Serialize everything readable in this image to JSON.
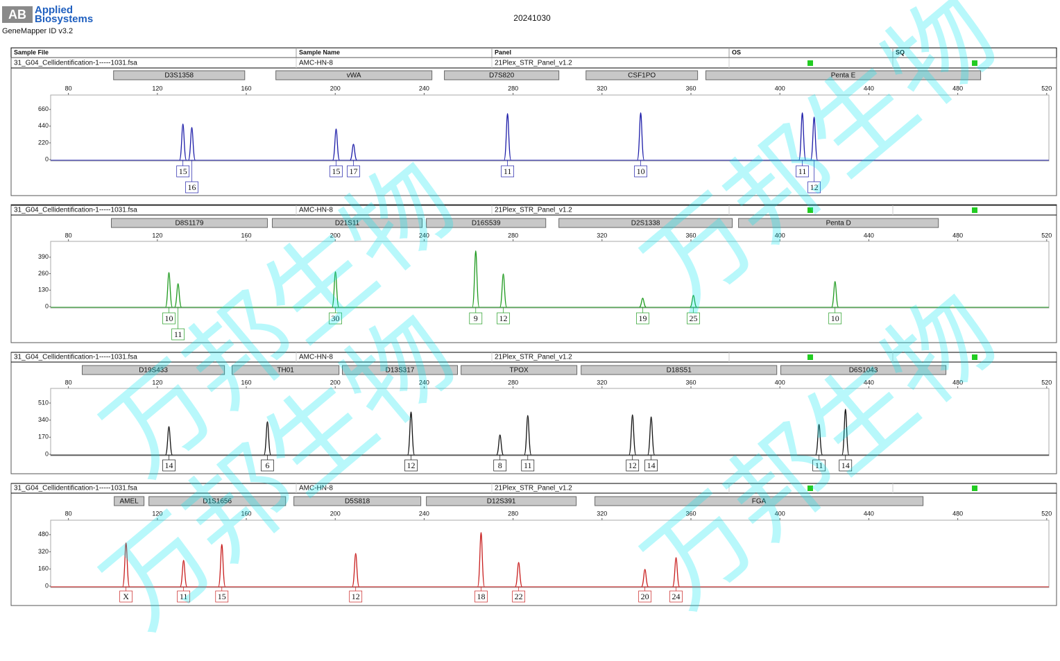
{
  "header": {
    "logo_mark": "AB",
    "logo_line1": "Applied",
    "logo_line2": "Biosystems",
    "software": "GeneMapper ID v3.2",
    "date": "20241030",
    "watermark": "万邦生物"
  },
  "table_header": {
    "sample_file": "Sample File",
    "sample_name": "Sample Name",
    "panel": "Panel",
    "os": "OS",
    "sq": "SQ"
  },
  "chart_data": [
    {
      "type": "electropherogram",
      "sample_file": "31_G04_Cellidentification-1-----1031.fsa",
      "sample_name": "AMC-HN-8",
      "panel": "21Plex_STR_Panel_v1.2",
      "color": "#1c1ca8",
      "xlim": [
        72,
        521
      ],
      "xticks": [
        80,
        120,
        160,
        200,
        240,
        280,
        320,
        360,
        400,
        440,
        480,
        520
      ],
      "ylim": [
        0,
        850
      ],
      "yticks": [
        0,
        220,
        440,
        660
      ],
      "markers": [
        {
          "name": "D3S1358",
          "start": 100.3,
          "end": 159.3
        },
        {
          "name": "vWA",
          "start": 173.3,
          "end": 243.5
        },
        {
          "name": "D7S820",
          "start": 249.1,
          "end": 300.6
        },
        {
          "name": "CSF1PO",
          "start": 312.8,
          "end": 363
        },
        {
          "name": "Penta E",
          "start": 366.7,
          "end": 490.3
        }
      ],
      "peaks": {
        "x": [
          131.5,
          135.5,
          200.4,
          208.2,
          277.5,
          337.4,
          410.1,
          415.4
        ],
        "values": [
          468,
          422,
          403,
          202,
          605,
          615,
          615,
          560
        ],
        "alleles": [
          "15",
          "16",
          "15",
          "17",
          "11",
          "10",
          "11",
          "12"
        ]
      }
    },
    {
      "type": "electropherogram",
      "sample_file": "31_G04_Cellidentification-1-----1031.fsa",
      "sample_name": "AMC-HN-8",
      "panel": "21Plex_STR_Panel_v1.2",
      "color": "#1f9a1f",
      "xlim": [
        72,
        521
      ],
      "xticks": [
        80,
        120,
        160,
        200,
        240,
        280,
        320,
        360,
        400,
        440,
        480,
        520
      ],
      "ylim": [
        0,
        515
      ],
      "yticks": [
        0,
        130,
        260,
        390
      ],
      "markers": [
        {
          "name": "D8S1179",
          "start": 99.3,
          "end": 169.5
        },
        {
          "name": "D21S11",
          "start": 171.7,
          "end": 239.1
        },
        {
          "name": "D16S539",
          "start": 241,
          "end": 294.7
        },
        {
          "name": "D2S1338",
          "start": 300.6,
          "end": 378.6
        },
        {
          "name": "Penta D",
          "start": 381.4,
          "end": 471.3
        }
      ],
      "peaks": {
        "x": [
          125.2,
          129.3,
          200.1,
          263.2,
          275.6,
          338.3,
          361.1,
          424.8
        ],
        "values": [
          269,
          181,
          275,
          440,
          258,
          66,
          88,
          198
        ],
        "alleles": [
          "10",
          "11",
          "30",
          "9",
          "12",
          "19",
          "25",
          "10"
        ]
      }
    },
    {
      "type": "electropherogram",
      "sample_file": "31_G04_Cellidentification-1-----1031.fsa",
      "sample_name": "AMC-HN-8",
      "panel": "21Plex_STR_Panel_v1.2",
      "color": "#111111",
      "xlim": [
        72,
        521
      ],
      "xticks": [
        80,
        120,
        160,
        200,
        240,
        280,
        320,
        360,
        400,
        440,
        480,
        520
      ],
      "ylim": [
        0,
        655
      ],
      "yticks": [
        0,
        170,
        340,
        510
      ],
      "markers": [
        {
          "name": "D19S433",
          "start": 86.2,
          "end": 150.2
        },
        {
          "name": "TH01",
          "start": 153.6,
          "end": 201.7
        },
        {
          "name": "D13S317",
          "start": 203.2,
          "end": 255
        },
        {
          "name": "TPOX",
          "start": 256.6,
          "end": 308.7
        },
        {
          "name": "D18S51",
          "start": 310.6,
          "end": 398.6
        },
        {
          "name": "D6S1043",
          "start": 400.4,
          "end": 474.7
        }
      ],
      "peaks": {
        "x": [
          125.2,
          169.5,
          234.1,
          274.1,
          286.6,
          333.7,
          342.1,
          417.6,
          429.5
        ],
        "values": [
          276,
          324,
          421,
          193,
          386,
          393,
          372,
          297,
          448
        ],
        "alleles": [
          "14",
          "6",
          "12",
          "8",
          "11",
          "12",
          "14",
          "11",
          "14"
        ]
      }
    },
    {
      "type": "electropherogram",
      "sample_file": "31_G04_Cellidentification-1-----1031.fsa",
      "sample_name": "AMC-HN-8",
      "panel": "21Plex_STR_Panel_v1.2",
      "color": "#c81e1e",
      "xlim": [
        72,
        521
      ],
      "xticks": [
        80,
        120,
        160,
        200,
        240,
        280,
        320,
        360,
        400,
        440,
        480,
        520
      ],
      "ylim": [
        0,
        615
      ],
      "yticks": [
        0,
        160,
        320,
        480
      ],
      "markers": [
        {
          "name": "AMEL",
          "start": 100.6,
          "end": 114
        },
        {
          "name": "D1S1656",
          "start": 116.2,
          "end": 177.7
        },
        {
          "name": "D5S818",
          "start": 181.4,
          "end": 238.5
        },
        {
          "name": "D12S391",
          "start": 241,
          "end": 308.4
        },
        {
          "name": "FGA",
          "start": 316.8,
          "end": 464.4
        }
      ],
      "peaks": {
        "x": [
          105.9,
          131.8,
          149,
          209.2,
          265.6,
          282.5,
          339.3,
          353.3
        ],
        "values": [
          403,
          240,
          390,
          305,
          500,
          221,
          156,
          266
        ],
        "alleles": [
          "X",
          "11",
          "15",
          "12",
          "18",
          "22",
          "20",
          "24"
        ]
      }
    }
  ]
}
